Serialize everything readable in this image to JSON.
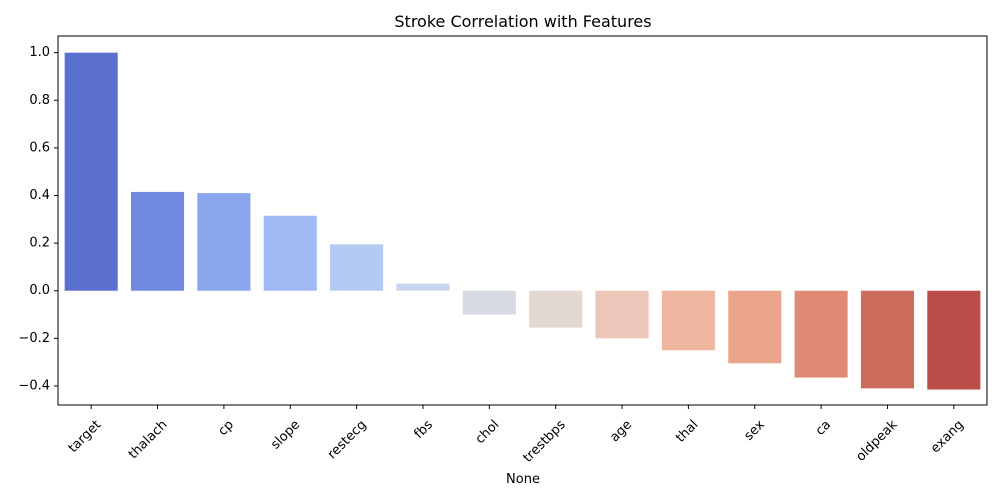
{
  "chart_data": {
    "type": "bar",
    "title": "Stroke Correlation with Features",
    "xlabel": "None",
    "ylabel": "",
    "categories": [
      "target",
      "thalach",
      "cp",
      "slope",
      "restecg",
      "fbs",
      "chol",
      "trestbps",
      "age",
      "thal",
      "sex",
      "ca",
      "oldpeak",
      "exang"
    ],
    "values": [
      1.0,
      0.415,
      0.41,
      0.315,
      0.195,
      0.03,
      -0.1,
      -0.155,
      -0.2,
      -0.25,
      -0.305,
      -0.365,
      -0.41,
      -0.415
    ],
    "colors": [
      "#5b6fcf",
      "#6f88e0",
      "#89a5eb",
      "#a0baf4",
      "#b4caf3",
      "#c7d7f0",
      "#d6dbe3",
      "#e3d7d1",
      "#ecc7b9",
      "#efb79f",
      "#eaa48b",
      "#df8a74",
      "#cd6c5d",
      "#bb4e4b"
    ],
    "ylim": [
      -0.48,
      1.07
    ],
    "yticks": [
      -0.4,
      -0.2,
      0.0,
      0.2,
      0.4,
      0.6,
      0.8,
      1.0
    ],
    "ytick_labels": [
      "−0.4",
      "−0.2",
      "0.0",
      "0.2",
      "0.4",
      "0.6",
      "0.8",
      "1.0"
    ],
    "grid": false,
    "legend": "none"
  }
}
